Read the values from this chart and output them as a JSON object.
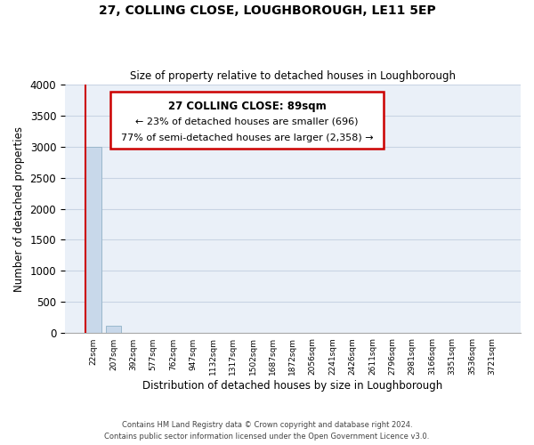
{
  "title": "27, COLLING CLOSE, LOUGHBOROUGH, LE11 5EP",
  "subtitle": "Size of property relative to detached houses in Loughborough",
  "xlabel": "Distribution of detached houses by size in Loughborough",
  "ylabel": "Number of detached properties",
  "bar_labels": [
    "22sqm",
    "207sqm",
    "392sqm",
    "577sqm",
    "762sqm",
    "947sqm",
    "1132sqm",
    "1317sqm",
    "1502sqm",
    "1687sqm",
    "1872sqm",
    "2056sqm",
    "2241sqm",
    "2426sqm",
    "2611sqm",
    "2796sqm",
    "2981sqm",
    "3166sqm",
    "3351sqm",
    "3536sqm",
    "3721sqm"
  ],
  "bar_values": [
    3000,
    120,
    0,
    0,
    0,
    0,
    0,
    0,
    0,
    0,
    0,
    0,
    0,
    0,
    0,
    0,
    0,
    0,
    0,
    0,
    0
  ],
  "bar_color": "#c8d8ea",
  "bar_edgecolor": "#9ab8cc",
  "ylim": [
    0,
    4000
  ],
  "yticks": [
    0,
    500,
    1000,
    1500,
    2000,
    2500,
    3000,
    3500,
    4000
  ],
  "property_line_color": "#cc0000",
  "annotation_box_color": "#cc0000",
  "annotation_title": "27 COLLING CLOSE: 89sqm",
  "annotation_line1": "← 23% of detached houses are smaller (696)",
  "annotation_line2": "77% of semi-detached houses are larger (2,358) →",
  "footer_line1": "Contains HM Land Registry data © Crown copyright and database right 2024.",
  "footer_line2": "Contains public sector information licensed under the Open Government Licence v3.0.",
  "grid_color": "#c8d4e4",
  "background_color": "#eaf0f8"
}
